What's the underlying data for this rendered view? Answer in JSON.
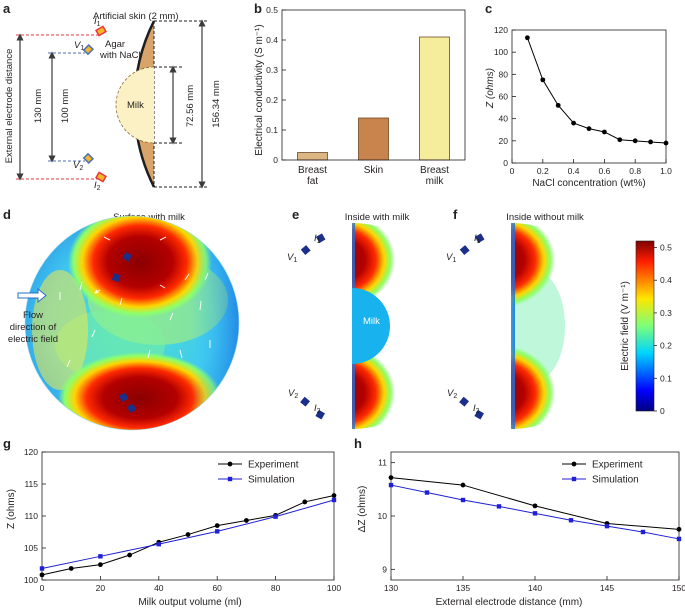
{
  "panel_letters": {
    "a": "a",
    "b": "b",
    "c": "c",
    "d": "d",
    "e": "e",
    "f": "f",
    "g": "g",
    "h": "h"
  },
  "panel_a": {
    "skin_label": "Artificial skin (2 mm)",
    "agar_label_1": "Agar",
    "agar_label_2": "with NaCl",
    "milk_label": "Milk",
    "left_axis_label": "External electrode distance",
    "dim_130": "130 mm",
    "dim_100": "100 mm",
    "dim_72": "72.56 mm",
    "dim_156": "156.34 mm",
    "electrodes": {
      "i1": "I",
      "i1_sub": "1",
      "v1": "V",
      "v1_sub": "1",
      "v2": "V",
      "v2_sub": "2",
      "i2": "I",
      "i2_sub": "2"
    },
    "colors": {
      "agar": "#d9a46a",
      "milk": "#fbf1c4",
      "electrode_red": "#e8373d",
      "electrode_blue": "#4c6fb5"
    }
  },
  "panel_d": {
    "title": "Surface with milk",
    "flow_1": "Flow",
    "flow_2": "direction of",
    "flow_3": "electric field"
  },
  "panel_e": {
    "title": "Inside with milk",
    "milk_label": "Milk"
  },
  "panel_f": {
    "title": "Inside without milk"
  },
  "colorbar": {
    "label": "Electric field (V m⁻¹)",
    "ticks": [
      "0",
      "0.1",
      "0.2",
      "0.3",
      "0.4",
      "0.5"
    ]
  },
  "chart_data": [
    {
      "id": "b",
      "type": "bar",
      "categories": [
        [
          "Breast",
          "fat"
        ],
        [
          "Skin"
        ],
        [
          "Breast",
          "milk"
        ]
      ],
      "values": [
        0.025,
        0.14,
        0.41
      ],
      "colors": [
        "#dcb583",
        "#c9844e",
        "#f5ed9c"
      ],
      "ylabel": "Electrical conductivity (S m⁻¹)",
      "ylim": [
        0,
        0.5
      ],
      "yticks": [
        "0",
        "0.1",
        "0.2",
        "0.3",
        "0.4",
        "0.5"
      ]
    },
    {
      "id": "c",
      "type": "line",
      "x": [
        0.1,
        0.2,
        0.3,
        0.4,
        0.5,
        0.6,
        0.7,
        0.8,
        0.9,
        1.0
      ],
      "y": [
        113,
        75,
        52,
        36,
        31,
        28,
        21,
        20,
        19,
        18
      ],
      "xlabel": "NaCl concentration (wt%)",
      "ylabel": "Z (ohms)",
      "xlim": [
        0,
        1.0
      ],
      "ylim": [
        0,
        120
      ],
      "xticks": [
        "0",
        "0.2",
        "0.4",
        "0.6",
        "0.8",
        "1.0"
      ],
      "yticks": [
        "0",
        "20",
        "40",
        "60",
        "80",
        "100",
        "120"
      ]
    },
    {
      "id": "g",
      "type": "line",
      "series": [
        {
          "name": "Experiment",
          "color": "#000000",
          "x": [
            0,
            10,
            20,
            30,
            40,
            50,
            60,
            70,
            80,
            90,
            100
          ],
          "y": [
            100.8,
            101.8,
            102.4,
            103.9,
            105.9,
            107.1,
            108.5,
            109.3,
            110.1,
            112.2,
            113.2
          ]
        },
        {
          "name": "Simulation",
          "color": "#1f1fd6",
          "x": [
            0,
            20,
            40,
            60,
            80,
            100
          ],
          "y": [
            101.8,
            103.7,
            105.6,
            107.6,
            109.9,
            112.5
          ]
        }
      ],
      "xlabel": "Milk output volume (ml)",
      "ylabel": "Z (ohms)",
      "xlim": [
        0,
        100
      ],
      "ylim": [
        100,
        120
      ],
      "xticks": [
        "0",
        "20",
        "40",
        "60",
        "80",
        "100"
      ],
      "yticks": [
        "100",
        "105",
        "110",
        "115",
        "120"
      ],
      "legend": "top-right"
    },
    {
      "id": "h",
      "type": "line",
      "series": [
        {
          "name": "Experiment",
          "color": "#000000",
          "x": [
            130,
            135,
            140,
            145,
            150
          ],
          "y": [
            10.72,
            10.58,
            10.19,
            9.86,
            9.75
          ]
        },
        {
          "name": "Simulation",
          "color": "#1f1fd6",
          "x": [
            130,
            132.5,
            135,
            137.5,
            140,
            142.5,
            145,
            147.5,
            150
          ],
          "y": [
            10.58,
            10.44,
            10.3,
            10.18,
            10.05,
            9.92,
            9.81,
            9.7,
            9.57
          ]
        }
      ],
      "xlabel": "External electrode distance (mm)",
      "ylabel": "ΔZ (ohms)",
      "xlim": [
        130,
        150
      ],
      "ylim": [
        8.8,
        11.2
      ],
      "xticks": [
        "130",
        "135",
        "140",
        "145",
        "150"
      ],
      "yticks": [
        "9",
        "10",
        "11"
      ],
      "legend": "top-right"
    }
  ]
}
